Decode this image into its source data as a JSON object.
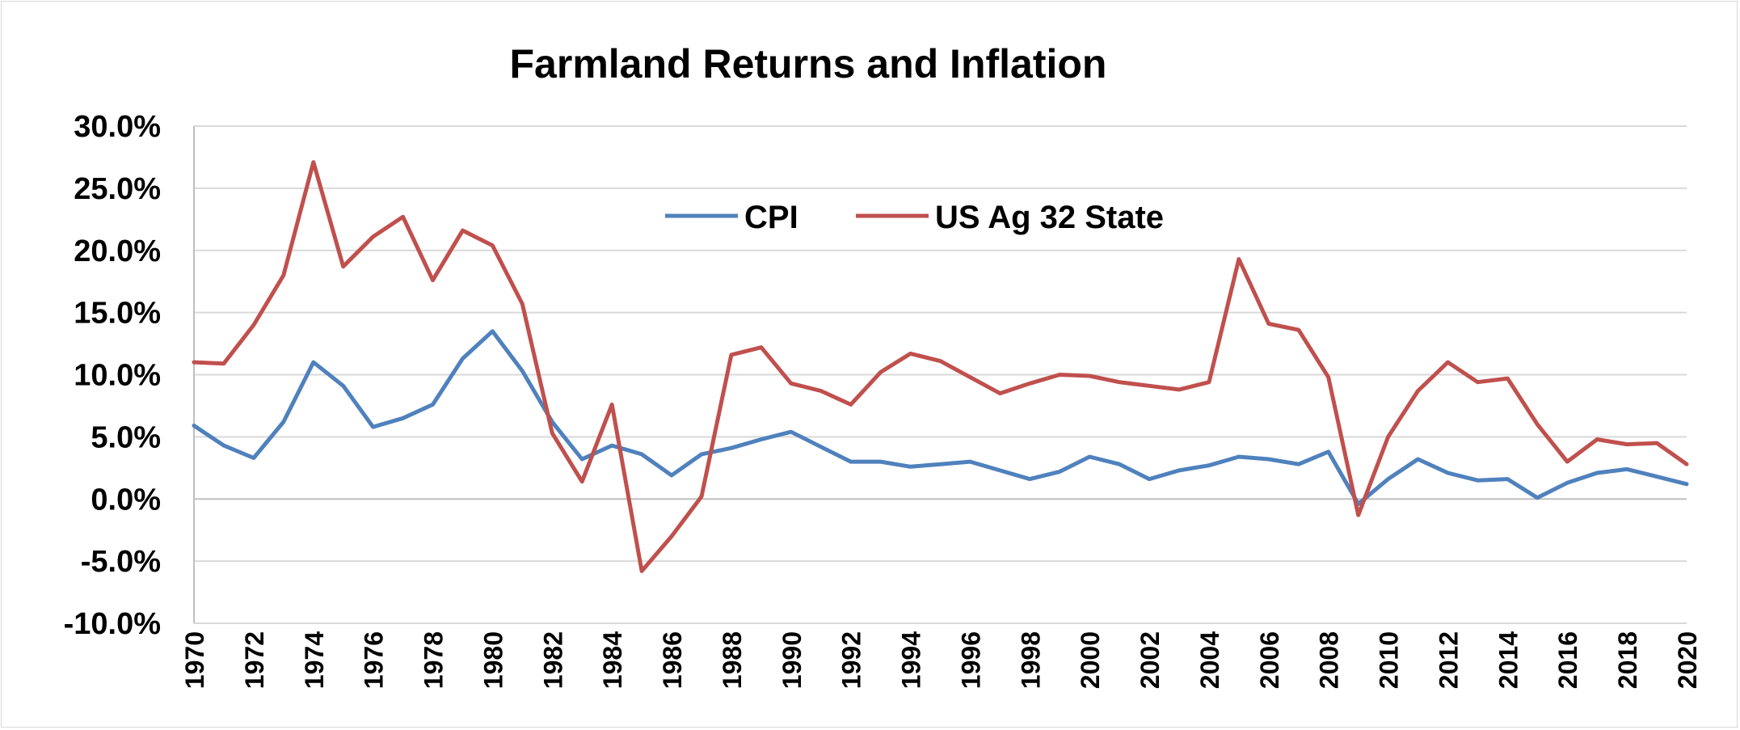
{
  "chart_data": {
    "type": "line",
    "title": "Farmland Returns and Inflation",
    "xlabel": "",
    "ylabel": "",
    "ylim": [
      -10,
      30
    ],
    "y_ticks": [
      30,
      25,
      20,
      15,
      10,
      5,
      0,
      -5,
      -10
    ],
    "y_tick_labels": [
      "30.0%",
      "25.0%",
      "20.0%",
      "15.0%",
      "10.0%",
      "5.0%",
      "0.0%",
      "-5.0%",
      "-10.0%"
    ],
    "x": [
      1970,
      1971,
      1972,
      1973,
      1974,
      1975,
      1976,
      1977,
      1978,
      1979,
      1980,
      1981,
      1982,
      1983,
      1984,
      1985,
      1986,
      1987,
      1988,
      1989,
      1990,
      1991,
      1992,
      1993,
      1994,
      1995,
      1996,
      1997,
      1998,
      1999,
      2000,
      2001,
      2002,
      2003,
      2004,
      2005,
      2006,
      2007,
      2008,
      2009,
      2010,
      2011,
      2012,
      2013,
      2014,
      2015,
      2016,
      2017,
      2018,
      2019,
      2020
    ],
    "x_tick_labels": [
      "1970",
      "1972",
      "1974",
      "1976",
      "1978",
      "1980",
      "1982",
      "1984",
      "1986",
      "1988",
      "1990",
      "1992",
      "1994",
      "1996",
      "1998",
      "2000",
      "2002",
      "2004",
      "2006",
      "2008",
      "2010",
      "2012",
      "2014",
      "2016",
      "2018",
      "2020"
    ],
    "grid": true,
    "legend_position": "top-center",
    "series": [
      {
        "name": "CPI",
        "color": "#4f81bd",
        "values": [
          5.9,
          4.3,
          3.3,
          6.2,
          11.0,
          9.1,
          5.8,
          6.5,
          7.6,
          11.3,
          13.5,
          10.3,
          6.2,
          3.2,
          4.3,
          3.6,
          1.9,
          3.6,
          4.1,
          4.8,
          5.4,
          4.2,
          3.0,
          3.0,
          2.6,
          2.8,
          3.0,
          2.3,
          1.6,
          2.2,
          3.4,
          2.8,
          1.6,
          2.3,
          2.7,
          3.4,
          3.2,
          2.8,
          3.8,
          -0.4,
          1.6,
          3.2,
          2.1,
          1.5,
          1.6,
          0.1,
          1.3,
          2.1,
          2.4,
          1.8,
          1.2
        ]
      },
      {
        "name": "US Ag 32 State",
        "color": "#c0504d",
        "values": [
          11.0,
          10.9,
          14.0,
          18.0,
          27.1,
          18.7,
          21.1,
          22.7,
          17.6,
          21.6,
          20.4,
          15.7,
          5.3,
          1.4,
          7.6,
          -5.8,
          -3.0,
          0.2,
          11.6,
          12.2,
          9.3,
          8.7,
          7.6,
          10.2,
          11.7,
          11.1,
          9.8,
          8.5,
          9.3,
          10.0,
          9.9,
          9.4,
          9.1,
          8.8,
          9.4,
          19.3,
          14.1,
          13.6,
          9.8,
          -1.3,
          5.0,
          8.7,
          11.0,
          9.4,
          9.7,
          6.0,
          3.0,
          4.8,
          4.4,
          4.5,
          2.8
        ]
      }
    ]
  }
}
